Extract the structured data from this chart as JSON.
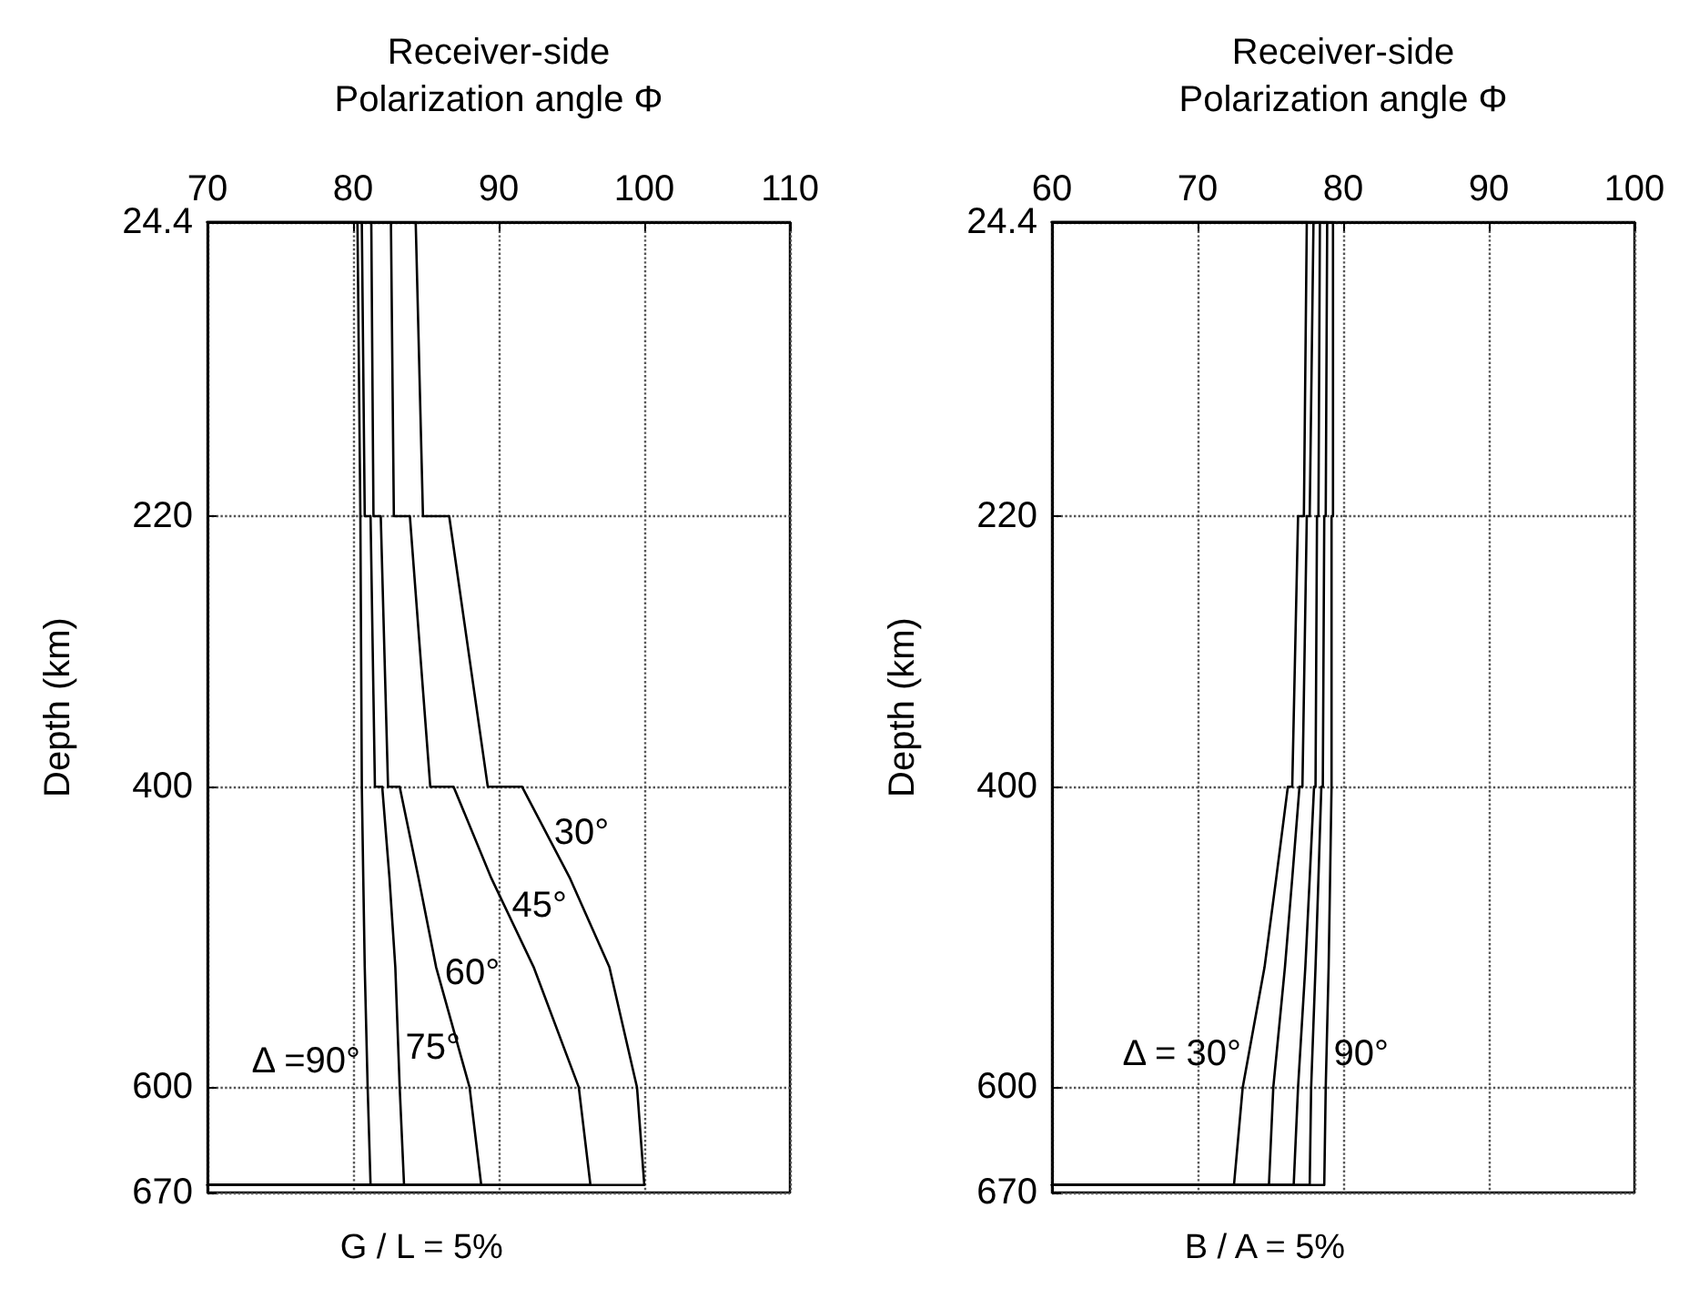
{
  "chart_data": [
    {
      "type": "line",
      "xlabel": "Receiver-side\nPolarization angle Φ",
      "ylabel": "Depth (km)",
      "xlim": [
        70,
        110
      ],
      "xticks": [
        70,
        80,
        90,
        100,
        110
      ],
      "ylim": [
        670,
        24.4
      ],
      "yticks": [
        24.4,
        220,
        400,
        600,
        670
      ],
      "grid": true,
      "marker": "none",
      "line_style": "solid",
      "series": [
        {
          "color": "#000000",
          "x": [
            70,
            84.3,
            84.8,
            86.6,
            89.25,
            91.6,
            94.9,
            97.6,
            99.5,
            100,
            70
          ],
          "values": [
            24.4,
            24.4,
            220,
            220,
            400,
            400,
            461,
            520,
            600,
            665,
            665
          ]
        },
        {
          "color": "#000000",
          "x": [
            70,
            82.6,
            82.8,
            83.9,
            85.3,
            86.9,
            89.5,
            92.4,
            95.5,
            96.3,
            70
          ],
          "values": [
            24.4,
            24.4,
            220,
            220,
            400,
            400,
            461,
            520,
            600,
            665,
            665
          ]
        },
        {
          "color": "#000000",
          "x": [
            70,
            81.25,
            81.4,
            81.9,
            82.4,
            83.2,
            84.5,
            85.7,
            88,
            88.8,
            70
          ],
          "values": [
            24.4,
            24.4,
            220,
            220,
            400,
            400,
            461,
            520,
            600,
            665,
            665
          ]
        },
        {
          "color": "#000000",
          "x": [
            70,
            80.6,
            80.8,
            81.2,
            81.5,
            82.0,
            82.5,
            82.9,
            83.2,
            83.5,
            70
          ],
          "values": [
            24.4,
            24.4,
            220,
            220,
            400,
            400,
            461,
            520,
            600,
            665,
            665
          ]
        },
        {
          "color": "#000000",
          "x": [
            70,
            80.3,
            80.5,
            80.5,
            80.6,
            80.6,
            80.7,
            80.8,
            81.0,
            81.2,
            70
          ],
          "values": [
            24.4,
            24.4,
            220,
            220,
            400,
            400,
            461,
            520,
            600,
            665,
            665
          ]
        }
      ],
      "annotations": [
        {
          "text": "30°",
          "x": 93.3,
          "y": 431
        },
        {
          "text": "45°",
          "x": 90.4,
          "y": 479
        },
        {
          "text": "60°",
          "x": 85.8,
          "y": 524
        },
        {
          "text": "75°",
          "x": 83.1,
          "y": 574
        },
        {
          "text": "Δ =90°",
          "x": 81.0,
          "y": 583
        },
        "G / L = 5%"
      ]
    },
    {
      "type": "line",
      "xlabel": "Receiver-side\nPolarization angle Φ",
      "ylabel": "Depth (km)",
      "xlim": [
        60,
        100
      ],
      "xticks": [
        60,
        70,
        80,
        90,
        100
      ],
      "ylim": [
        670,
        24.4
      ],
      "yticks": [
        24.4,
        220,
        400,
        600,
        670
      ],
      "grid": true,
      "marker": "none",
      "line_style": "solid",
      "series": [
        {
          "color": "#000000",
          "x": [
            60,
            77.5,
            77.3,
            76.9,
            76.5,
            76.2,
            75.4,
            74.6,
            73.1,
            72.5,
            60
          ],
          "values": [
            24.4,
            24.4,
            220,
            220,
            400,
            400,
            461,
            520,
            600,
            665,
            665
          ]
        },
        {
          "color": "#000000",
          "x": [
            60,
            77.96,
            77.7,
            77.5,
            77.2,
            77.0,
            76.5,
            76.0,
            75.2,
            74.9,
            60
          ],
          "values": [
            24.4,
            24.4,
            220,
            220,
            400,
            400,
            461,
            520,
            600,
            665,
            665
          ]
        },
        {
          "color": "#000000",
          "x": [
            60,
            78.4,
            78.3,
            78.2,
            78.1,
            78.0,
            77.7,
            77.4,
            76.9,
            76.6,
            60
          ],
          "values": [
            24.4,
            24.4,
            220,
            220,
            400,
            400,
            461,
            520,
            600,
            665,
            665
          ]
        },
        {
          "color": "#000000",
          "x": [
            60,
            78.9,
            78.8,
            78.7,
            78.6,
            78.5,
            78.3,
            78.1,
            77.8,
            77.7,
            60
          ],
          "values": [
            24.4,
            24.4,
            220,
            220,
            400,
            400,
            461,
            520,
            600,
            665,
            665
          ]
        },
        {
          "color": "#000000",
          "x": [
            60,
            79.3,
            79.3,
            79.2,
            79.2,
            79.2,
            79.1,
            79.0,
            78.8,
            78.7,
            60
          ],
          "values": [
            24.4,
            24.4,
            220,
            220,
            400,
            400,
            461,
            520,
            600,
            665,
            665
          ]
        }
      ],
      "annotations": [
        {
          "text": "Δ = 30°",
          "x": 73.5,
          "y": 578
        },
        {
          "text": "90°",
          "x": 78.85,
          "y": 578
        },
        "B / A = 5%"
      ]
    }
  ]
}
